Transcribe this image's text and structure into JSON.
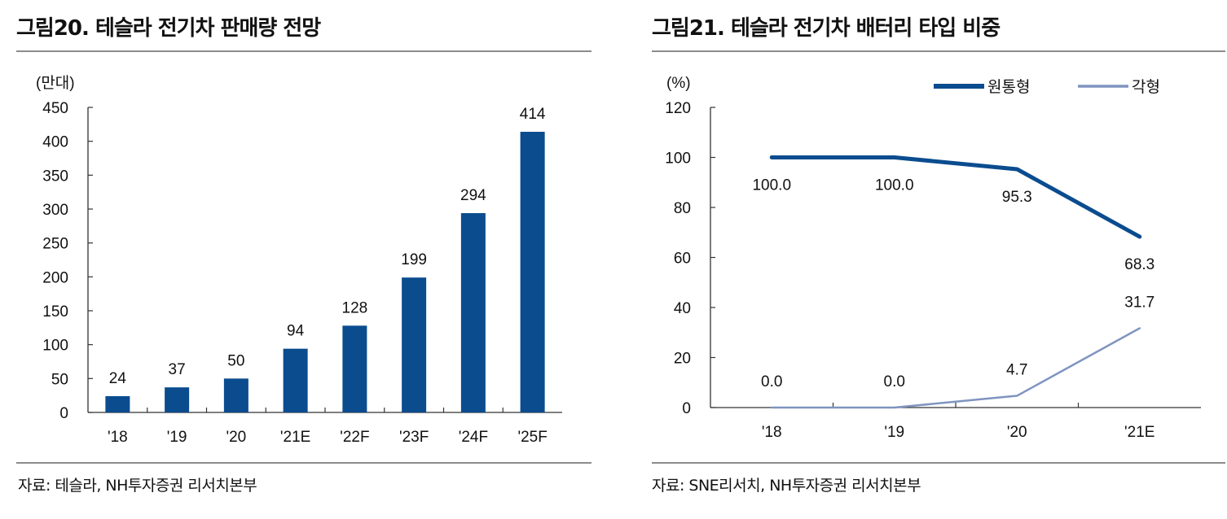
{
  "figures": [
    {
      "title": "그림20. 테슬라 전기차 판매량 전망",
      "source": "자료: 테슬라, NH투자증권 리서치본부"
    },
    {
      "title": "그림21. 테슬라 전기차 배터리 타입 비중",
      "source": "자료: SNE리서치, NH투자증권 리서치본부"
    }
  ],
  "chart_data": [
    {
      "type": "bar",
      "title": "그림20. 테슬라 전기차 판매량 전망",
      "unit_label": "(만대)",
      "categories": [
        "'18",
        "'19",
        "'20",
        "'21E",
        "'22F",
        "'23F",
        "'24F",
        "'25F"
      ],
      "values": [
        24,
        37,
        50,
        94,
        128,
        199,
        294,
        414
      ],
      "ylim": [
        0,
        450
      ],
      "yticks": [
        0,
        50,
        100,
        150,
        200,
        250,
        300,
        350,
        400,
        450
      ],
      "bar_color": "#0b4c8f",
      "grid": false,
      "data_labels": true
    },
    {
      "type": "line",
      "title": "그림21. 테슬라 전기차 배터리 타입 비중",
      "unit_label": "(%)",
      "categories": [
        "'18",
        "'19",
        "'20",
        "'21E"
      ],
      "ylim": [
        0,
        120
      ],
      "yticks": [
        0,
        20,
        40,
        60,
        80,
        100,
        120
      ],
      "legend_position": "top-right",
      "grid": false,
      "series": [
        {
          "name": "원통형",
          "values": [
            100.0,
            100.0,
            95.3,
            68.3
          ],
          "labels": [
            "100.0",
            "100.0",
            "95.3",
            "68.3"
          ],
          "color": "#0b4c8f"
        },
        {
          "name": "각형",
          "values": [
            0.0,
            0.0,
            4.7,
            31.7
          ],
          "labels": [
            "0.0",
            "0.0",
            "4.7",
            "31.7"
          ],
          "color": "#7f94c0"
        }
      ]
    }
  ]
}
